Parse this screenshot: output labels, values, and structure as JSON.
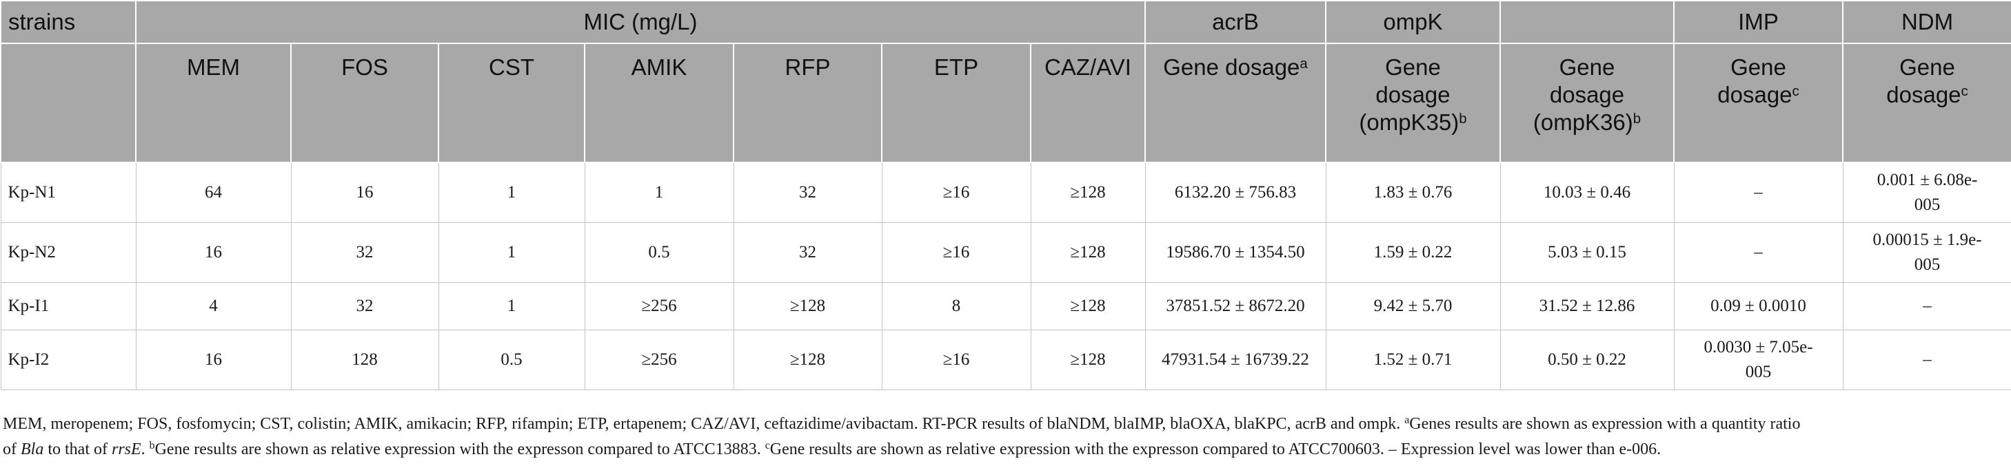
{
  "header": {
    "row1": {
      "strains": "strains",
      "mic": "MIC (mg/L)",
      "acrB": "acrB",
      "ompK": "ompK",
      "blank": "",
      "imp": "IMP",
      "ndm": "NDM"
    },
    "row2": {
      "mem": "MEM",
      "fos": "FOS",
      "cst": "CST",
      "amik": "AMIK",
      "rfp": "RFP",
      "etp": "ETP",
      "cazavi": "CAZ/AVI",
      "acrb_dosage": "Gene dosage",
      "acrb_sup": "a",
      "ompk35_line1": "Gene",
      "ompk35_line2": "dosage",
      "ompk35_line3": "(ompK35)",
      "ompk35_sup": "b",
      "ompk36_line1": "Gene",
      "ompk36_line2": "dosage",
      "ompk36_line3": "(ompK36)",
      "ompk36_sup": "b",
      "imp_line1": "Gene",
      "imp_line2": "dosage",
      "imp_sup": "c",
      "ndm_line1": "Gene",
      "ndm_line2": "dosage",
      "ndm_sup": "c"
    }
  },
  "rows": [
    {
      "strain": "Kp-N1",
      "mem": "64",
      "fos": "16",
      "cst": "1",
      "amik": "1",
      "rfp": "32",
      "etp": "≥16",
      "cazavi": "≥128",
      "acrb": "6132.20 ± 756.83",
      "ompk35": "1.83 ± 0.76",
      "ompk36": "10.03 ± 0.46",
      "imp_a": "–",
      "imp_b": "",
      "ndm_a": "0.001 ± 6.08e-",
      "ndm_b": "005"
    },
    {
      "strain": "Kp-N2",
      "mem": "16",
      "fos": "32",
      "cst": "1",
      "amik": "0.5",
      "rfp": "32",
      "etp": "≥16",
      "cazavi": "≥128",
      "acrb": "19586.70 ± 1354.50",
      "ompk35": "1.59 ± 0.22",
      "ompk36": "5.03 ± 0.15",
      "imp_a": "–",
      "imp_b": "",
      "ndm_a": "0.00015 ± 1.9e-",
      "ndm_b": "005"
    },
    {
      "strain": "Kp-I1",
      "mem": "4",
      "fos": "32",
      "cst": "1",
      "amik": "≥256",
      "rfp": "≥128",
      "etp": "8",
      "cazavi": "≥128",
      "acrb": "37851.52 ± 8672.20",
      "ompk35": "9.42 ± 5.70",
      "ompk36": "31.52 ± 12.86",
      "imp_a": "0.09 ± 0.0010",
      "imp_b": "",
      "ndm_a": "–",
      "ndm_b": ""
    },
    {
      "strain": "Kp-I2",
      "mem": "16",
      "fos": "128",
      "cst": "0.5",
      "amik": "≥256",
      "rfp": "≥128",
      "etp": "≥16",
      "cazavi": "≥128",
      "acrb": "47931.54 ± 16739.22",
      "ompk35": "1.52 ± 0.71",
      "ompk36": "0.50 ± 0.22",
      "imp_a": "0.0030 ± 7.05e-",
      "imp_b": "005",
      "ndm_a": "–",
      "ndm_b": ""
    }
  ],
  "footnote": {
    "p1": "MEM, meropenem; FOS, fosfomycin; CST, colistin; AMIK, amikacin; RFP, rifampin; ETP, ertapenem; CAZ/AVI, ceftazidime/avibactam. RT-PCR results of blaNDM, blaIMP, blaOXA, blaKPC, acrB and ompk. ",
    "sup_a": "a",
    "p2": "Genes results are shown as expression with a quantity ratio",
    "p3": "of ",
    "bla": "Bla",
    "p4": " to that of ",
    "rrsE": "rrsE",
    "p5": ". ",
    "sup_b": "b",
    "p6": "Gene results are shown as relative expression with the expresson compared to ATCC13883. ",
    "sup_c": "c",
    "p7": "Gene results are shown as relative expression with the expresson compared to ATCC700603. – Expression level was lower than e-006."
  }
}
